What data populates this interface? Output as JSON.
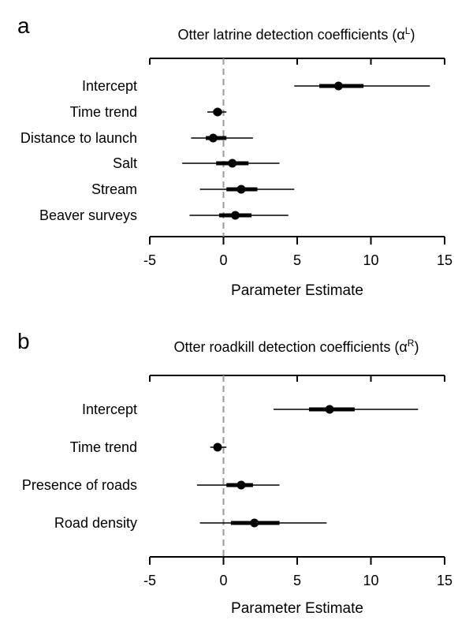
{
  "chart_data": [
    {
      "panel_label": "a",
      "type": "forest",
      "title": "Otter latrine detection coefficients (α",
      "title_sup": "L",
      "title_close": ")",
      "xlabel": "Parameter Estimate",
      "xlim": [
        -5,
        15
      ],
      "xticks": [
        -5,
        0,
        5,
        10,
        15
      ],
      "reference_line": 0,
      "series": [
        {
          "label": "Intercept",
          "estimate": 7.8,
          "ci50": [
            6.5,
            9.5
          ],
          "ci95": [
            4.8,
            14.0
          ]
        },
        {
          "label": "Time trend",
          "estimate": -0.4,
          "ci50": [
            -0.7,
            -0.1
          ],
          "ci95": [
            -1.1,
            0.2
          ]
        },
        {
          "label": "Distance to launch",
          "estimate": -0.7,
          "ci50": [
            -1.2,
            0.2
          ],
          "ci95": [
            -2.2,
            2.0
          ]
        },
        {
          "label": "Salt",
          "estimate": 0.6,
          "ci50": [
            -0.5,
            1.7
          ],
          "ci95": [
            -2.8,
            3.8
          ]
        },
        {
          "label": "Stream",
          "estimate": 1.2,
          "ci50": [
            0.2,
            2.3
          ],
          "ci95": [
            -1.6,
            4.8
          ]
        },
        {
          "label": "Beaver surveys",
          "estimate": 0.8,
          "ci50": [
            -0.3,
            1.9
          ],
          "ci95": [
            -2.3,
            4.4
          ]
        }
      ]
    },
    {
      "panel_label": "b",
      "type": "forest",
      "title": "Otter roadkill detection coefficients (α",
      "title_sup": "R",
      "title_close": ")",
      "xlabel": "Parameter Estimate",
      "xlim": [
        -5,
        15
      ],
      "xticks": [
        -5,
        0,
        5,
        10,
        15
      ],
      "reference_line": 0,
      "series": [
        {
          "label": "Intercept",
          "estimate": 7.2,
          "ci50": [
            5.8,
            8.9
          ],
          "ci95": [
            3.4,
            13.2
          ]
        },
        {
          "label": "Time trend",
          "estimate": -0.4,
          "ci50": [
            -0.6,
            -0.2
          ],
          "ci95": [
            -0.9,
            0.2
          ]
        },
        {
          "label": "Presence of roads",
          "estimate": 1.2,
          "ci50": [
            0.2,
            2.0
          ],
          "ci95": [
            -1.8,
            3.8
          ]
        },
        {
          "label": "Road density",
          "estimate": 2.1,
          "ci50": [
            0.5,
            3.8
          ],
          "ci95": [
            -1.6,
            7.0
          ]
        }
      ]
    }
  ]
}
